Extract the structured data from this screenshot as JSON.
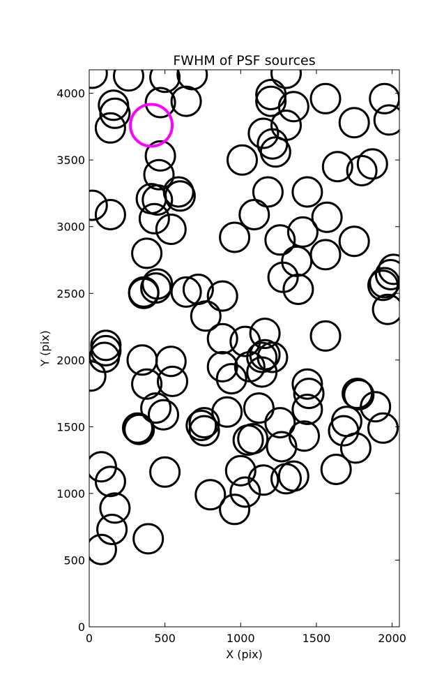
{
  "chart_data": {
    "type": "scatter",
    "title": "FWHM of PSF sources",
    "xlabel": "X (pix)",
    "ylabel": "Y (pix)",
    "xlim": [
      0,
      2048
    ],
    "ylim": [
      0,
      4176
    ],
    "grid": false,
    "xticks": [
      0,
      500,
      1000,
      1500,
      2000
    ],
    "yticks": [
      0,
      500,
      1000,
      1500,
      2000,
      2500,
      3000,
      3500,
      4000
    ],
    "marker": "open-circle",
    "marker_color": "#000000",
    "highlight_color": "#ff00ff",
    "series": [
      {
        "points": [
          [
            20,
            4150
          ],
          [
            260,
            4130
          ],
          [
            500,
            4120
          ],
          [
            680,
            4140
          ],
          [
            1300,
            4150
          ],
          [
            160,
            3910
          ],
          [
            170,
            3850
          ],
          [
            140,
            3740
          ],
          [
            470,
            3930
          ],
          [
            640,
            3940
          ],
          [
            1200,
            3990
          ],
          [
            1200,
            3940
          ],
          [
            1350,
            3900
          ],
          [
            1560,
            3960
          ],
          [
            1950,
            3960
          ],
          [
            1750,
            3780
          ],
          [
            1980,
            3800
          ],
          [
            1150,
            3700
          ],
          [
            1300,
            3760
          ],
          [
            1210,
            3620
          ],
          [
            1230,
            3560
          ],
          [
            470,
            3530
          ],
          [
            1010,
            3500
          ],
          [
            1640,
            3450
          ],
          [
            1800,
            3420
          ],
          [
            1870,
            3470
          ],
          [
            460,
            3390
          ],
          [
            20,
            3160
          ],
          [
            140,
            3090
          ],
          [
            410,
            3210
          ],
          [
            450,
            3200
          ],
          [
            590,
            3260
          ],
          [
            600,
            3230
          ],
          [
            1180,
            3260
          ],
          [
            1440,
            3260
          ],
          [
            430,
            3060
          ],
          [
            540,
            2980
          ],
          [
            1090,
            3090
          ],
          [
            1570,
            3070
          ],
          [
            960,
            2920
          ],
          [
            1260,
            2900
          ],
          [
            1410,
            2960
          ],
          [
            1750,
            2890
          ],
          [
            1560,
            2790
          ],
          [
            380,
            2800
          ],
          [
            2010,
            2680
          ],
          [
            1990,
            2640
          ],
          [
            1950,
            2580
          ],
          [
            1940,
            2560
          ],
          [
            1370,
            2740
          ],
          [
            1280,
            2620
          ],
          [
            1380,
            2530
          ],
          [
            450,
            2570
          ],
          [
            440,
            2540
          ],
          [
            360,
            2510
          ],
          [
            360,
            2500
          ],
          [
            640,
            2510
          ],
          [
            720,
            2530
          ],
          [
            880,
            2480
          ],
          [
            1970,
            2380
          ],
          [
            770,
            2330
          ],
          [
            880,
            2160
          ],
          [
            1030,
            2140
          ],
          [
            1160,
            2200
          ],
          [
            1560,
            2180
          ],
          [
            110,
            2110
          ],
          [
            110,
            2070
          ],
          [
            100,
            2020
          ],
          [
            10,
            1880
          ],
          [
            350,
            2000
          ],
          [
            540,
            1990
          ],
          [
            380,
            1820
          ],
          [
            550,
            1840
          ],
          [
            880,
            1950
          ],
          [
            940,
            1860
          ],
          [
            1060,
            1950
          ],
          [
            1140,
            1910
          ],
          [
            1160,
            2040
          ],
          [
            1140,
            2020
          ],
          [
            1210,
            2020
          ],
          [
            1440,
            1820
          ],
          [
            1450,
            1750
          ],
          [
            1770,
            1750
          ],
          [
            1780,
            1740
          ],
          [
            1890,
            1650
          ],
          [
            440,
            1640
          ],
          [
            490,
            1590
          ],
          [
            320,
            1490
          ],
          [
            330,
            1480
          ],
          [
            740,
            1510
          ],
          [
            760,
            1530
          ],
          [
            760,
            1470
          ],
          [
            910,
            1610
          ],
          [
            1120,
            1640
          ],
          [
            1260,
            1530
          ],
          [
            1440,
            1630
          ],
          [
            1420,
            1430
          ],
          [
            1080,
            1410
          ],
          [
            1050,
            1400
          ],
          [
            1270,
            1350
          ],
          [
            1700,
            1540
          ],
          [
            1680,
            1470
          ],
          [
            1760,
            1340
          ],
          [
            1940,
            1490
          ],
          [
            80,
            1200
          ],
          [
            140,
            1090
          ],
          [
            500,
            1160
          ],
          [
            1000,
            1170
          ],
          [
            1150,
            1100
          ],
          [
            1300,
            1110
          ],
          [
            1350,
            1130
          ],
          [
            1630,
            1180
          ],
          [
            800,
            990
          ],
          [
            1030,
            1010
          ],
          [
            960,
            880
          ],
          [
            170,
            890
          ],
          [
            150,
            730
          ],
          [
            80,
            580
          ],
          [
            390,
            660
          ]
        ]
      }
    ],
    "highlight_points": [
      [
        410,
        3760
      ]
    ]
  }
}
